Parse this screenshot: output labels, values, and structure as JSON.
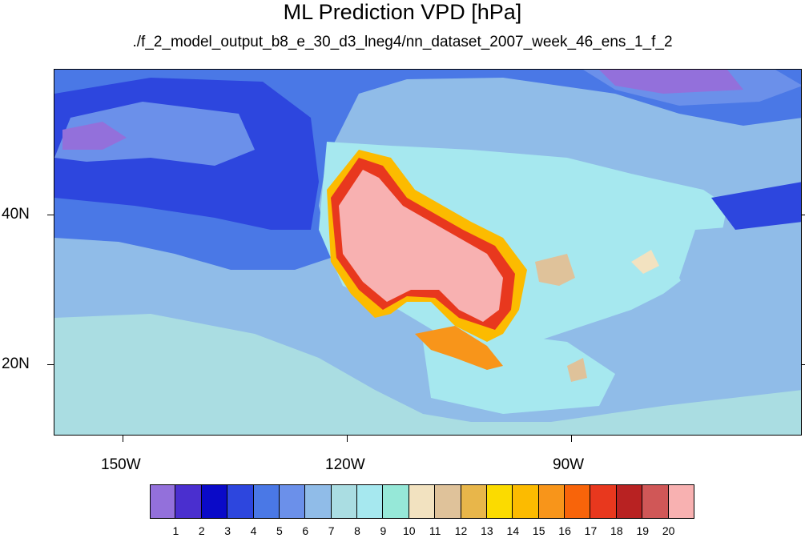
{
  "title": "ML Prediction VPD [hPa]",
  "subtitle": "./f_2_model_output_b8_e_30_d3_lneg4/nn_dataset_2007_week_46_ens_1_f_2",
  "lat_labels": [
    "40N",
    "20N"
  ],
  "lon_labels": [
    "150W",
    "120W",
    "90W"
  ],
  "colorbar": {
    "levels": [
      "1",
      "2",
      "3",
      "4",
      "5",
      "6",
      "7",
      "8",
      "9",
      "10",
      "11",
      "12",
      "13",
      "14",
      "15",
      "16",
      "17",
      "18",
      "19",
      "20"
    ],
    "colors": [
      "#9370db",
      "#4a2fcf",
      "#0a0ac8",
      "#2d46de",
      "#4a78e6",
      "#6b90ea",
      "#90bce8",
      "#aadde2",
      "#a6e8ef",
      "#96e8d8",
      "#f2e2c0",
      "#dfc29a",
      "#e8b64a",
      "#fbdb00",
      "#fcbb00",
      "#f8951a",
      "#f8640a",
      "#e8381e",
      "#b82222",
      "#d05757",
      "#f8b1b1"
    ]
  },
  "map": {
    "projection": "lat-lon",
    "lon_range": [
      -160,
      -60
    ],
    "lat_range": [
      10,
      59
    ],
    "variable": "VPD",
    "units": "hPa"
  }
}
